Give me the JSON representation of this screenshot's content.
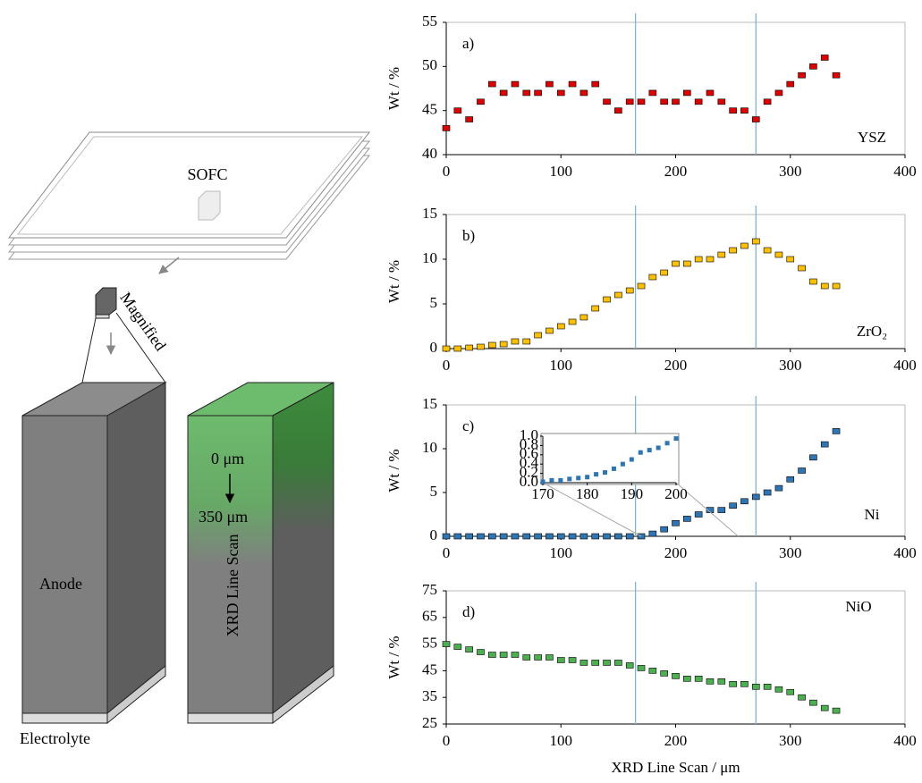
{
  "diagram": {
    "plate": "SOFC",
    "magnified": "Magnified",
    "anode": "Anode",
    "electrolyte": "Electrolyte",
    "scan_start": "0 μm",
    "scan_end": "350 μm",
    "scan": "XRD Line Scan"
  },
  "chart_data": [
    {
      "type": "scatter",
      "panel": "a)",
      "ylabel": "Wt / %",
      "xlim": [
        0,
        400
      ],
      "xticks": [
        0,
        100,
        200,
        300,
        400
      ],
      "ylim": [
        40,
        55
      ],
      "yticks": [
        40,
        45,
        50,
        55
      ],
      "vlines": [
        165,
        270
      ],
      "x": [
        0,
        10,
        20,
        30,
        40,
        50,
        60,
        70,
        80,
        90,
        100,
        110,
        120,
        130,
        140,
        150,
        160,
        170,
        180,
        190,
        200,
        210,
        220,
        230,
        240,
        250,
        260,
        270,
        280,
        290,
        300,
        310,
        320,
        330,
        340
      ],
      "series": [
        {
          "name": "YSZ",
          "color": "#e00000",
          "values": [
            43,
            45,
            44,
            46,
            48,
            47,
            48,
            47,
            47,
            48,
            47,
            48,
            47,
            48,
            46,
            45,
            46,
            46,
            47,
            46,
            46,
            47,
            46,
            47,
            46,
            45,
            45,
            44,
            46,
            47,
            48,
            49,
            50,
            51,
            49
          ]
        }
      ]
    },
    {
      "type": "scatter",
      "panel": "b)",
      "ylabel": "Wt / %",
      "xlim": [
        0,
        400
      ],
      "xticks": [
        0,
        100,
        200,
        300,
        400
      ],
      "ylim": [
        0,
        15
      ],
      "yticks": [
        0,
        5,
        10,
        15
      ],
      "vlines": [
        165,
        270
      ],
      "x": [
        0,
        10,
        20,
        30,
        40,
        50,
        60,
        70,
        80,
        90,
        100,
        110,
        120,
        130,
        140,
        150,
        160,
        170,
        180,
        190,
        200,
        210,
        220,
        230,
        240,
        250,
        260,
        270,
        280,
        290,
        300,
        310,
        320,
        330,
        340
      ],
      "series": [
        {
          "name": "ZrO₂",
          "color": "#ffc000",
          "values": [
            0,
            0,
            0.1,
            0.2,
            0.4,
            0.5,
            0.8,
            0.8,
            1.5,
            2,
            2.5,
            3,
            3.5,
            4.5,
            5.5,
            6,
            6.5,
            7,
            8,
            8.5,
            9.5,
            9.5,
            10,
            10,
            10.5,
            11,
            11.5,
            12,
            11,
            10.5,
            10,
            9,
            7.5,
            7,
            7
          ]
        }
      ]
    },
    {
      "type": "scatter",
      "panel": "c)",
      "ylabel": "Wt / %",
      "xlim": [
        0,
        400
      ],
      "xticks": [
        0,
        100,
        200,
        300,
        400
      ],
      "ylim": [
        0,
        15
      ],
      "yticks": [
        0,
        5,
        10,
        15
      ],
      "vlines": [
        165,
        270
      ],
      "x": [
        0,
        10,
        20,
        30,
        40,
        50,
        60,
        70,
        80,
        90,
        100,
        110,
        120,
        130,
        140,
        150,
        160,
        170,
        180,
        190,
        200,
        210,
        220,
        230,
        240,
        250,
        260,
        270,
        280,
        290,
        300,
        310,
        320,
        330,
        340
      ],
      "series": [
        {
          "name": "Ni",
          "color": "#2e75b6",
          "values": [
            0,
            0,
            0,
            0,
            0,
            0,
            0,
            0,
            0,
            0,
            0,
            0,
            0,
            0,
            0,
            0,
            0,
            0,
            0.3,
            0.8,
            1.5,
            2,
            2.5,
            3,
            3,
            3.5,
            4,
            4.5,
            5,
            5.5,
            6.5,
            7.5,
            9,
            10.5,
            12
          ]
        }
      ],
      "inset": {
        "xlim": [
          170,
          200
        ],
        "xticks": [
          170,
          180,
          190,
          200
        ],
        "ylim": [
          0,
          1
        ],
        "yticks": [
          {
            "value": 0,
            "label": "0.0"
          },
          {
            "value": 0.2,
            "label": "0.2"
          },
          {
            "value": 0.4,
            "label": "0.4"
          },
          {
            "value": 0.6,
            "label": "0.6"
          },
          {
            "value": 0.8,
            "label": "0.8"
          },
          {
            "value": 1,
            "label": "1.0"
          }
        ],
        "x": [
          170,
          172,
          174,
          176,
          178,
          180,
          182,
          184,
          186,
          188,
          190,
          192,
          194,
          196,
          198,
          200
        ],
        "values": [
          0.02,
          0.05,
          0.05,
          0.08,
          0.1,
          0.12,
          0.18,
          0.22,
          0.3,
          0.4,
          0.5,
          0.65,
          0.7,
          0.75,
          0.85,
          0.95
        ]
      }
    },
    {
      "type": "scatter",
      "panel": "d)",
      "ylabel": "Wt / %",
      "xlabel": "XRD Line Scan / μm",
      "xlim": [
        0,
        400
      ],
      "xticks": [
        0,
        100,
        200,
        300,
        400
      ],
      "ylim": [
        25,
        75
      ],
      "yticks": [
        25,
        35,
        45,
        55,
        65,
        75
      ],
      "vlines": [
        165,
        270
      ],
      "x": [
        0,
        10,
        20,
        30,
        40,
        50,
        60,
        70,
        80,
        90,
        100,
        110,
        120,
        130,
        140,
        150,
        160,
        170,
        180,
        190,
        200,
        210,
        220,
        230,
        240,
        250,
        260,
        270,
        280,
        290,
        300,
        310,
        320,
        330,
        340
      ],
      "series": [
        {
          "name": "NiO",
          "color": "#4caf50",
          "values": [
            55,
            54,
            53,
            52,
            51,
            51,
            51,
            50,
            50,
            50,
            49,
            49,
            48,
            48,
            48,
            48,
            47,
            46,
            45,
            44,
            43,
            42,
            42,
            41,
            41,
            40,
            40,
            39,
            39,
            38,
            37,
            35,
            33,
            31,
            30
          ]
        }
      ]
    }
  ]
}
